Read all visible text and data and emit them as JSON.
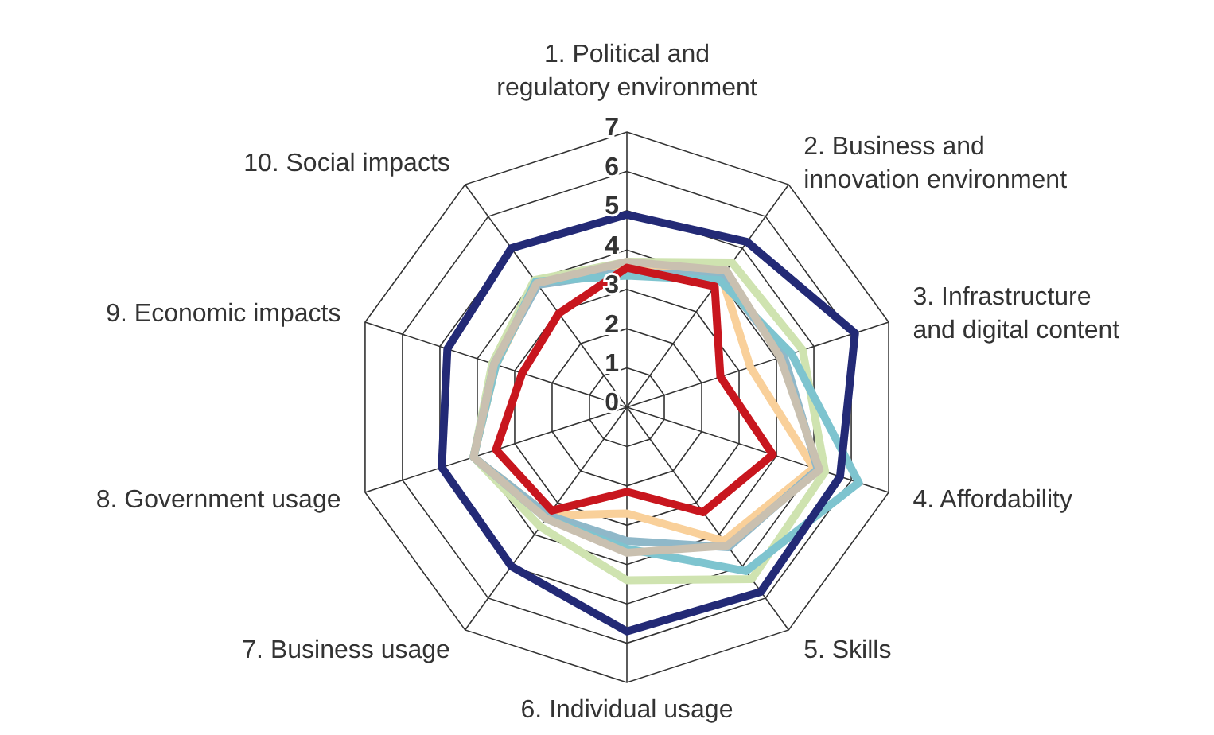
{
  "chart_data": {
    "type": "radar",
    "categories": [
      "1. Political and regulatory environment",
      "2. Business and innovation environment",
      "3. Infrastructure and digital content",
      "4. Affordability",
      "5. Skills",
      "6. Individual usage",
      "7. Business usage",
      "8. Government usage",
      "9. Economic impacts",
      "10. Social impacts"
    ],
    "ylim": [
      0,
      7
    ],
    "yticks": [
      0,
      1,
      2,
      3,
      4,
      5,
      6,
      7
    ],
    "grid": true,
    "marker": "none",
    "line_style": "solid",
    "series": [
      {
        "color": "#f9d09a",
        "values": [
          3.5,
          4.1,
          3.3,
          5.0,
          4.2,
          2.7,
          3.4,
          4.1,
          3.5,
          3.9
        ]
      },
      {
        "color": "#cfe3b0",
        "values": [
          3.7,
          4.55,
          4.7,
          5.3,
          5.4,
          4.4,
          3.75,
          4.1,
          3.6,
          4.0
        ]
      },
      {
        "color": "#8fb8c9",
        "values": [
          3.45,
          4.1,
          4.2,
          5.1,
          4.4,
          3.4,
          3.4,
          4.1,
          3.55,
          3.85
        ]
      },
      {
        "color": "#7ec4cf",
        "values": [
          3.35,
          4.0,
          4.4,
          6.2,
          5.15,
          3.6,
          3.5,
          4.1,
          3.5,
          3.95
        ]
      },
      {
        "color": "#c9c0b0",
        "values": [
          3.7,
          4.3,
          4.1,
          5.15,
          4.35,
          3.7,
          3.5,
          4.1,
          3.55,
          3.9
        ]
      },
      {
        "color": "#232a76",
        "values": [
          4.9,
          5.2,
          6.1,
          5.7,
          5.8,
          5.7,
          5.0,
          4.95,
          4.8,
          5.0
        ]
      },
      {
        "color": "#c8161e",
        "values": [
          3.55,
          3.8,
          2.5,
          3.9,
          3.3,
          2.15,
          3.25,
          3.5,
          2.8,
          2.95
        ]
      }
    ]
  }
}
